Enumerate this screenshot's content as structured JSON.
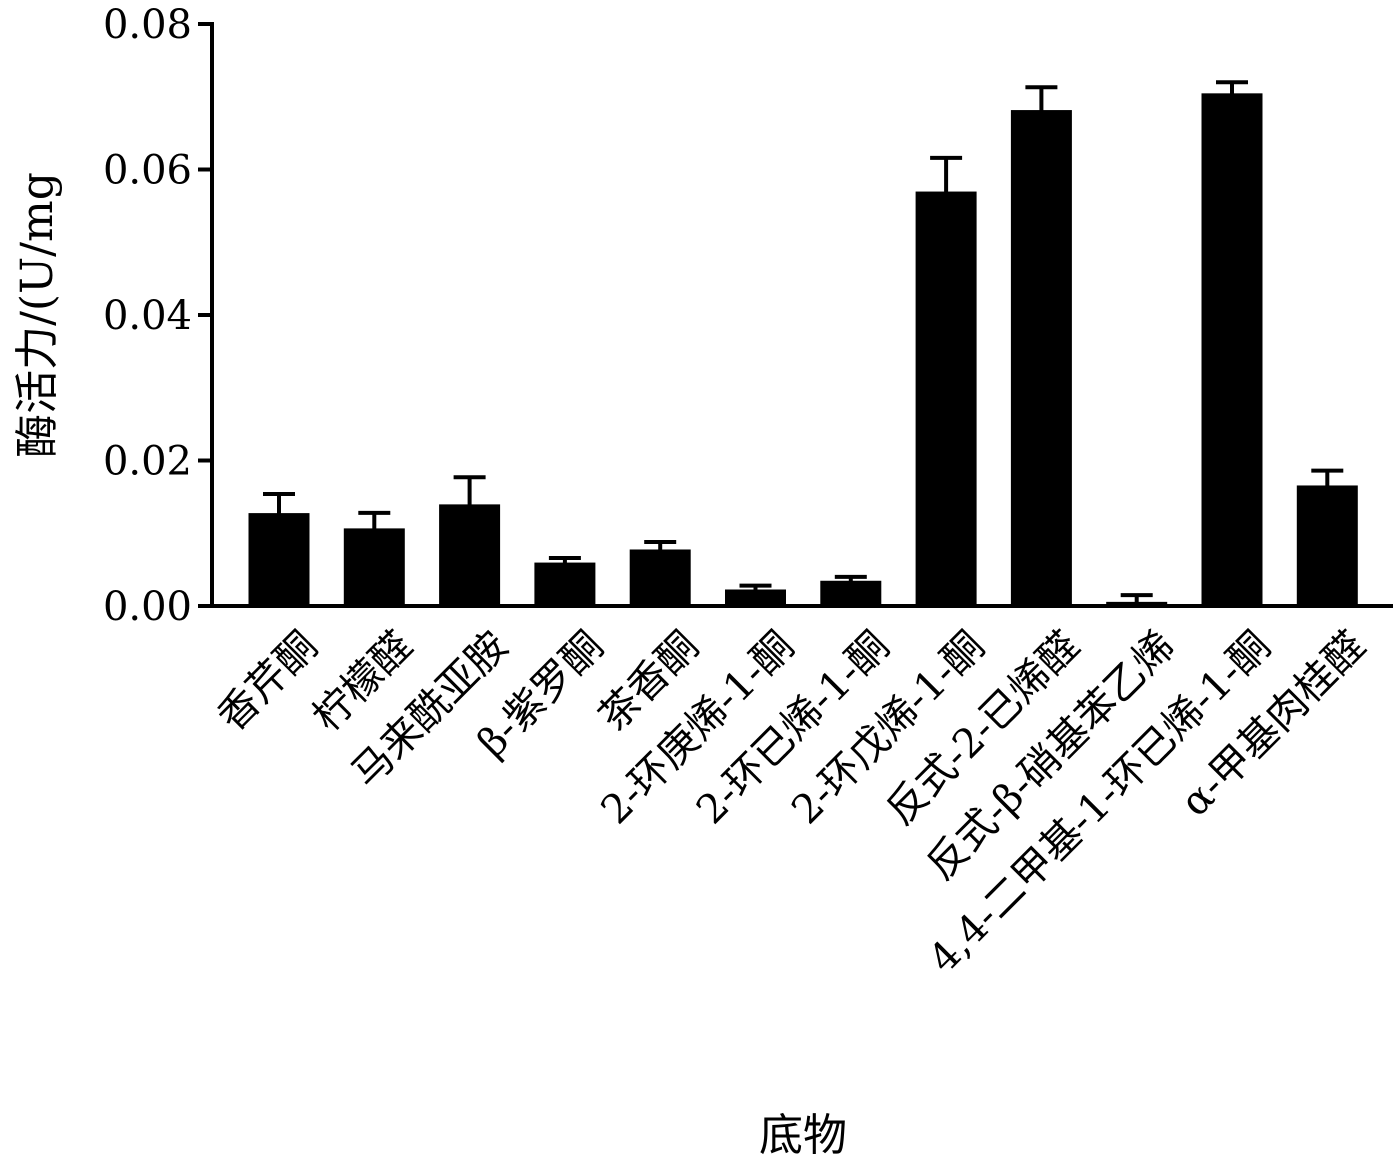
{
  "chart_data": {
    "type": "bar",
    "xlabel": "底物",
    "ylabel": "酶活力/(U/mg",
    "ylim": [
      0,
      0.08
    ],
    "yticks": [
      "0.00",
      "0.02",
      "0.04",
      "0.06",
      "0.08"
    ],
    "categories": [
      "香芹酮",
      "柠檬醛",
      "马来酰亚胺",
      "β-紫罗酮",
      "茶香酮",
      "2-环庚烯-1-酮",
      "2-环已烯-1-酮",
      "2-环戊烯-1-酮",
      "反式-2-已烯醛",
      "反式-β-硝基苯乙烯",
      "4,4-二甲基-1-环已烯-1-酮",
      "α-甲基肉桂醛"
    ],
    "values": [
      0.0127,
      0.0106,
      0.0139,
      0.0059,
      0.0077,
      0.0022,
      0.0034,
      0.0569,
      0.0681,
      0.0005,
      0.0704,
      0.0165
    ],
    "errors": [
      0.0027,
      0.0022,
      0.0038,
      0.0007,
      0.0011,
      0.0006,
      0.0006,
      0.0047,
      0.0032,
      0.001,
      0.0016,
      0.0021
    ],
    "bar_color": "#000000",
    "grid": false,
    "legend": "none"
  }
}
